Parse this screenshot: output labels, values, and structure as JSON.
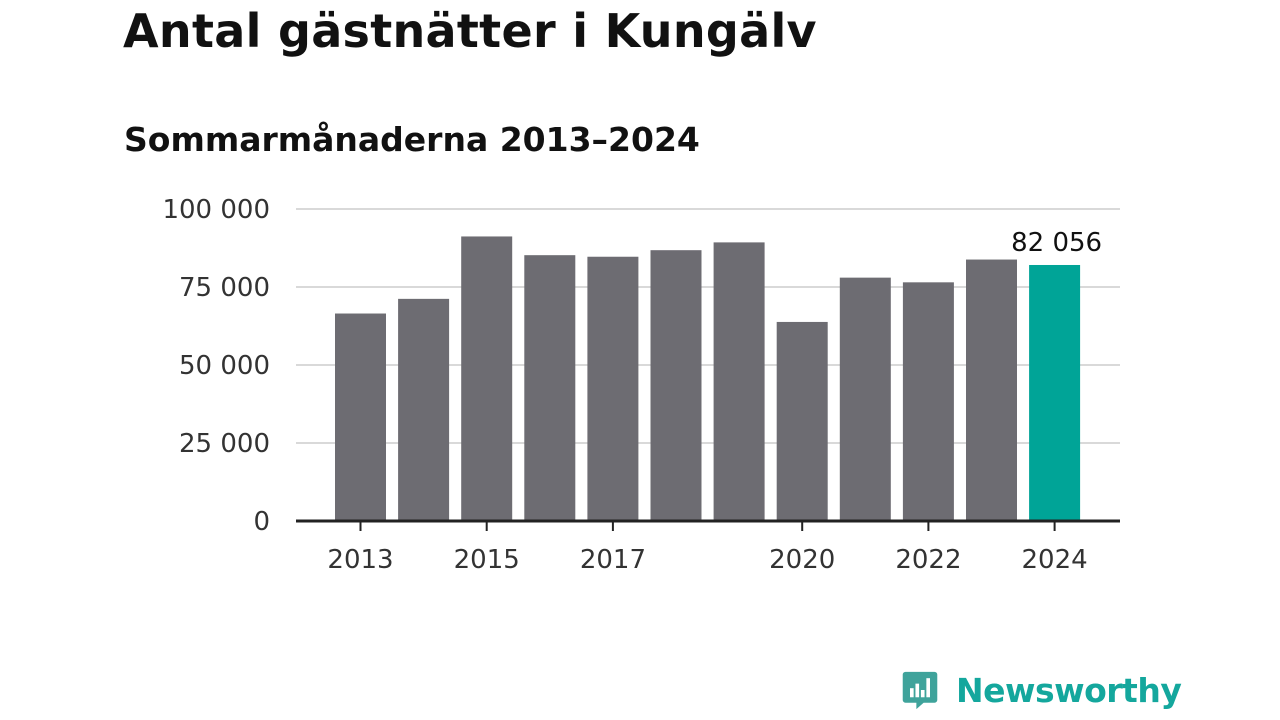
{
  "title": "Antal gästnätter i Kungälv",
  "subtitle": "Sommarmånaderna 2013–2024",
  "brand": {
    "name": "Newsworthy",
    "color": "#14a79d"
  },
  "colors": {
    "bar": "#6d6c72",
    "highlight": "#00a497",
    "grid": "#d9d9d9",
    "axis": "#222222"
  },
  "chart_data": {
    "type": "bar",
    "title": "Antal gästnätter i Kungälv",
    "subtitle": "Sommarmånaderna 2013–2024",
    "categories": [
      "2013",
      "2014",
      "2015",
      "2016",
      "2017",
      "2018",
      "2019",
      "2020",
      "2021",
      "2022",
      "2023",
      "2024"
    ],
    "values": [
      66500,
      71200,
      91200,
      85200,
      84700,
      86800,
      89300,
      63800,
      78000,
      76500,
      83800,
      82056
    ],
    "x_tick_labels": [
      "2013",
      "2015",
      "2017",
      "2020",
      "2022",
      "2024"
    ],
    "y_ticks": [
      0,
      25000,
      50000,
      75000,
      100000
    ],
    "y_tick_labels": [
      "0",
      "25 000",
      "50 000",
      "75 000",
      "100 000"
    ],
    "ylim": [
      0,
      100000
    ],
    "highlight_index": 11,
    "data_labels": [
      {
        "index": 11,
        "text": "82 056"
      }
    ],
    "grid": true,
    "legend": "none"
  }
}
